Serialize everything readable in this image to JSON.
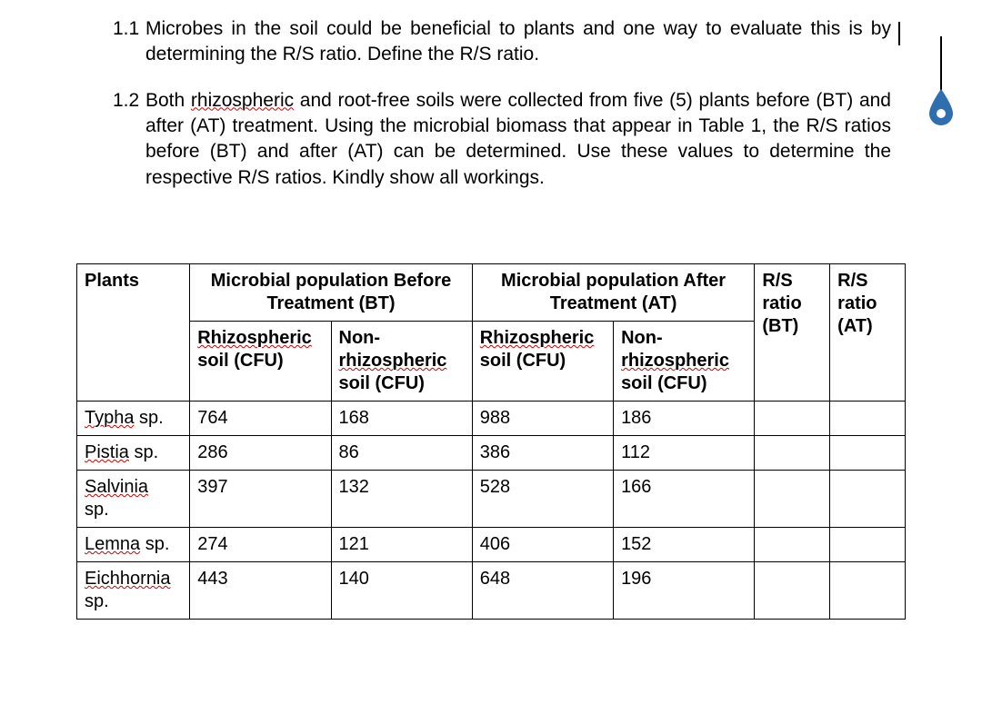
{
  "questions": [
    {
      "num": "1.1",
      "text_parts": [
        "Microbes in the soil could be beneficial to plants and one way to evaluate this is by determining the R/S ratio. Define the R/S ratio."
      ]
    },
    {
      "num": "1.2",
      "text_parts": [
        "Both ",
        {
          "squiggle": "rhizospheric"
        },
        " and root-free soils were collected from five (5) plants before (BT) and after (AT) treatment. Using the microbial biomass that appear in Table 1, the R/S ratios before (BT) and after (AT) can be determined. Use these values to determine the respective R/S ratios. Kindly show all workings."
      ]
    }
  ],
  "table": {
    "head_row1": {
      "plants": "Plants",
      "bt_group": "Microbial population Before Treatment (BT)",
      "at_group": "Microbial population After Treatment (AT)",
      "rs_bt": "R/S ratio (BT)",
      "rs_at": "R/S ratio (AT)"
    },
    "head_row2": {
      "rhizo_bt": "Rhizospheric",
      "rhizo_bt_sub": "soil (CFU)",
      "non_bt": "Non-",
      "non_bt_mid": "rhizospheric",
      "non_bt_sub": "soil (CFU)",
      "rhizo_at": "Rhizospheric",
      "rhizo_at_sub": "soil (CFU)",
      "non_at": "Non-",
      "non_at_mid": "rhizospheric",
      "non_at_sub": "soil (CFU)"
    },
    "rows": [
      {
        "plant": "Typha",
        "suffix": " sp.",
        "rhizo_bt": "764",
        "non_bt": "168",
        "rhizo_at": "988",
        "non_at": "186"
      },
      {
        "plant": "Pistia",
        "suffix": " sp.",
        "rhizo_bt": "286",
        "non_bt": "86",
        "rhizo_at": "386",
        "non_at": "112"
      },
      {
        "plant": "Salvinia",
        "suffix": " sp.",
        "rhizo_bt": "397",
        "non_bt": "132",
        "rhizo_at": "528",
        "non_at": "166",
        "wrap": true
      },
      {
        "plant": "Lemna",
        "suffix": " sp.",
        "rhizo_bt": "274",
        "non_bt": "121",
        "rhizo_at": "406",
        "non_at": "152"
      },
      {
        "plant": "Eichhornia",
        "suffix": " sp.",
        "rhizo_bt": "443",
        "non_bt": "140",
        "rhizo_at": "648",
        "non_at": "196",
        "wrap": true
      }
    ]
  },
  "marker_color": "#2f6fb0"
}
